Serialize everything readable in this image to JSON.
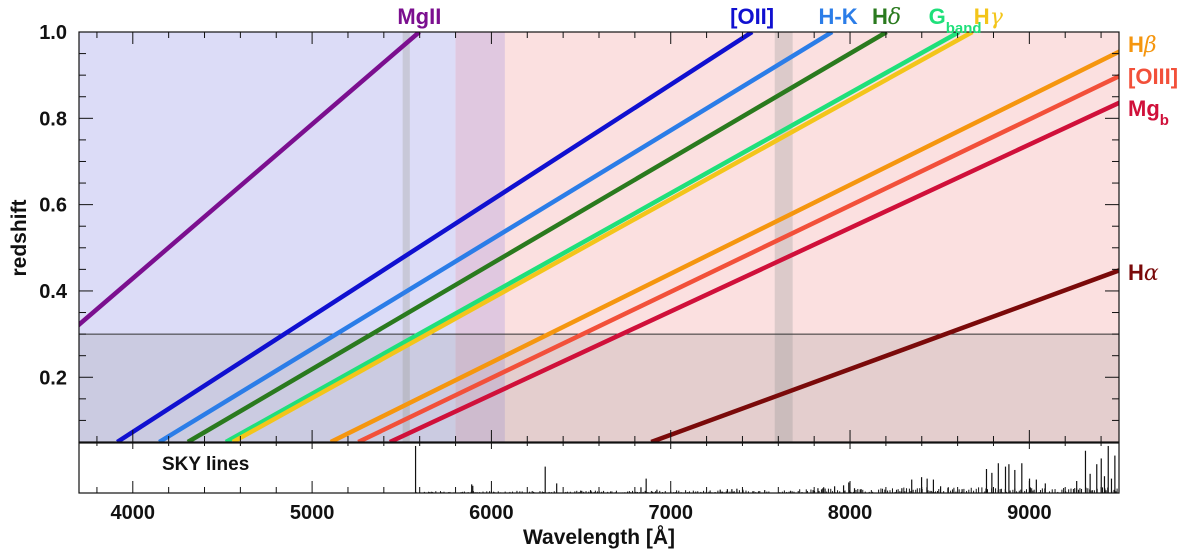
{
  "chart_data": {
    "type": "line",
    "xlabel": "Wavelength [Å]",
    "ylabel": "redshift",
    "xlim": [
      3700,
      9500
    ],
    "ylim": [
      0.05,
      1.0
    ],
    "x_ticks": [
      4000,
      5000,
      6000,
      7000,
      8000,
      9000
    ],
    "x_tick_labels": [
      "4000",
      "5000",
      "6000",
      "7000",
      "8000",
      "9000"
    ],
    "y_ticks": [
      0.2,
      0.4,
      0.6,
      0.8,
      1.0
    ],
    "y_tick_labels": [
      "0.2",
      "0.4",
      "0.6",
      "0.8",
      "1.0"
    ],
    "series": [
      {
        "name": "MgII",
        "label_parts": [
          "MgII"
        ],
        "rest_wavelength": 2799,
        "color": "#7b0f8f",
        "label_position": "top"
      },
      {
        "name": "[OII]",
        "label_parts": [
          "[OII]"
        ],
        "rest_wavelength": 3727,
        "color": "#1010d0",
        "label_position": "top"
      },
      {
        "name": "H-K",
        "label_parts": [
          "H-K"
        ],
        "rest_wavelength": 3950,
        "color": "#2b7de8",
        "label_position": "top"
      },
      {
        "name": "Hδ",
        "label_parts": [
          "H",
          "δ"
        ],
        "rest_wavelength": 4102,
        "color": "#2a7a1e",
        "label_position": "top"
      },
      {
        "name": "G_band",
        "label_parts": [
          "G",
          "band"
        ],
        "rest_wavelength": 4304,
        "color": "#1fe07a",
        "label_position": "top"
      },
      {
        "name": "Hγ",
        "label_parts": [
          "H",
          "γ"
        ],
        "rest_wavelength": 4341,
        "color": "#f3c51a",
        "label_position": "top"
      },
      {
        "name": "Hβ",
        "label_parts": [
          "H",
          "β"
        ],
        "rest_wavelength": 4861,
        "color": "#f5960f",
        "label_position": "right"
      },
      {
        "name": "[OIII]",
        "label_parts": [
          "[OIII]"
        ],
        "rest_wavelength": 5007,
        "color": "#f2503a",
        "label_position": "right"
      },
      {
        "name": "Mg_b",
        "label_parts": [
          "Mg",
          "b"
        ],
        "rest_wavelength": 5175,
        "color": "#d0103a",
        "label_position": "right"
      },
      {
        "name": "Hα",
        "label_parts": [
          "H",
          "α"
        ],
        "rest_wavelength": 6563,
        "color": "#7a0a0a",
        "label_position": "right"
      }
    ],
    "shaded_regions": [
      {
        "name": "blue-arm",
        "x_range": [
          3700,
          6075
        ],
        "color": "#dcdcf7"
      },
      {
        "name": "red-arm",
        "x_range": [
          5800,
          9500
        ],
        "color": "#fbe0e0"
      },
      {
        "name": "overlap",
        "x_range": [
          5800,
          6075
        ],
        "color": "#e0c8e0"
      },
      {
        "name": "telluric-band-1",
        "x_range": [
          5505,
          5545
        ],
        "color": "#c8c8d8"
      },
      {
        "name": "telluric-band-2",
        "x_range": [
          7580,
          7680
        ],
        "color": "#dccaca"
      },
      {
        "name": "low-z-band",
        "y_range": [
          0.05,
          0.3
        ],
        "color": "rgba(128,128,128,0.18)"
      }
    ],
    "z_threshold": 0.3,
    "sky_panel": {
      "label": "SKY lines",
      "lines": [
        {
          "x": 5577,
          "h": 0.98
        },
        {
          "x": 5890,
          "h": 0.18
        },
        {
          "x": 5896,
          "h": 0.15
        },
        {
          "x": 6300,
          "h": 0.55
        },
        {
          "x": 6364,
          "h": 0.2
        },
        {
          "x": 6498,
          "h": 0.05
        },
        {
          "x": 6553,
          "h": 0.06
        },
        {
          "x": 6834,
          "h": 0.12
        },
        {
          "x": 6863,
          "h": 0.3
        },
        {
          "x": 6923,
          "h": 0.07
        },
        {
          "x": 7276,
          "h": 0.07
        },
        {
          "x": 7316,
          "h": 0.08
        },
        {
          "x": 7341,
          "h": 0.08
        },
        {
          "x": 7369,
          "h": 0.09
        },
        {
          "x": 7402,
          "h": 0.07
        },
        {
          "x": 7524,
          "h": 0.06
        },
        {
          "x": 7794,
          "h": 0.06
        },
        {
          "x": 7821,
          "h": 0.1
        },
        {
          "x": 7853,
          "h": 0.12
        },
        {
          "x": 7914,
          "h": 0.14
        },
        {
          "x": 7964,
          "h": 0.16
        },
        {
          "x": 7993,
          "h": 0.22
        },
        {
          "x": 8025,
          "h": 0.1
        },
        {
          "x": 8062,
          "h": 0.08
        },
        {
          "x": 8289,
          "h": 0.1
        },
        {
          "x": 8344,
          "h": 0.28
        },
        {
          "x": 8399,
          "h": 0.33
        },
        {
          "x": 8430,
          "h": 0.3
        },
        {
          "x": 8465,
          "h": 0.28
        },
        {
          "x": 8505,
          "h": 0.14
        },
        {
          "x": 8548,
          "h": 0.12
        },
        {
          "x": 8625,
          "h": 0.08
        },
        {
          "x": 8761,
          "h": 0.5
        },
        {
          "x": 8791,
          "h": 0.42
        },
        {
          "x": 8827,
          "h": 0.62
        },
        {
          "x": 8867,
          "h": 0.55
        },
        {
          "x": 8886,
          "h": 0.6
        },
        {
          "x": 8919,
          "h": 0.48
        },
        {
          "x": 8958,
          "h": 0.62
        },
        {
          "x": 9001,
          "h": 0.3
        },
        {
          "x": 9039,
          "h": 0.28
        },
        {
          "x": 9089,
          "h": 0.2
        },
        {
          "x": 9264,
          "h": 0.25
        },
        {
          "x": 9313,
          "h": 0.88
        },
        {
          "x": 9339,
          "h": 0.4
        },
        {
          "x": 9376,
          "h": 0.6
        },
        {
          "x": 9401,
          "h": 0.72
        },
        {
          "x": 9419,
          "h": 0.35
        },
        {
          "x": 9440,
          "h": 0.98
        },
        {
          "x": 9458,
          "h": 0.3
        },
        {
          "x": 9477,
          "h": 0.78
        }
      ],
      "noise_regions": [
        {
          "range": [
            5580,
            6000
          ],
          "amp": 0.04
        },
        {
          "range": [
            6000,
            7000
          ],
          "amp": 0.05
        },
        {
          "range": [
            7000,
            7700
          ],
          "amp": 0.06
        },
        {
          "range": [
            7700,
            8300
          ],
          "amp": 0.1
        },
        {
          "range": [
            8300,
            9500
          ],
          "amp": 0.12
        }
      ]
    }
  }
}
